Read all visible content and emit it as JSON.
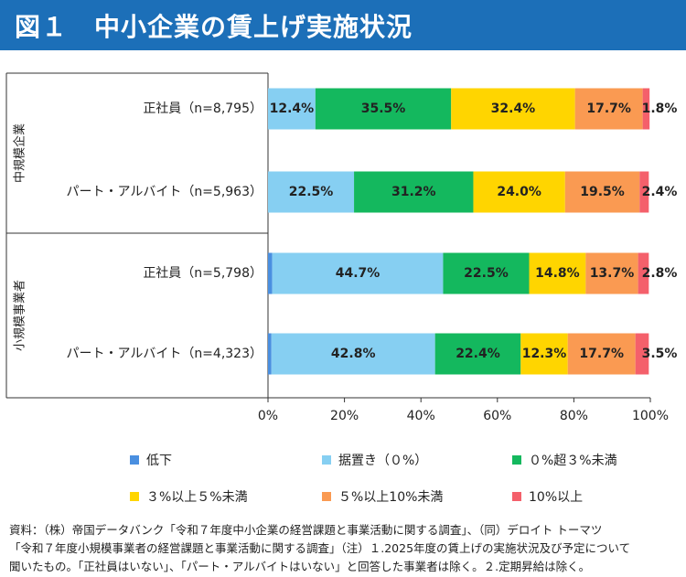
{
  "title": "図１　中小企業の賃上げ実施状況",
  "chart_data": {
    "type": "bar",
    "orientation": "horizontal",
    "stacked": true,
    "categories": [
      "正社員（n=8,795）",
      "パート・アルバイト（n=5,963）",
      "正社員（n=5,798）",
      "パート・アルバイト（n=4,323）"
    ],
    "groups": [
      {
        "name": "中規模企業",
        "categories": [
          0,
          1
        ]
      },
      {
        "name": "小規模事業者",
        "categories": [
          2,
          3
        ]
      }
    ],
    "series": [
      {
        "name": "低下",
        "color": "#4a8fe0",
        "values": [
          0.0,
          0.0,
          1.1,
          0.9
        ]
      },
      {
        "name": "据置き（０%）",
        "color": "#86cff2",
        "values": [
          12.4,
          22.5,
          44.7,
          42.8
        ],
        "labels": [
          "12.4%",
          "22.5%",
          "44.7%",
          "42.8%"
        ]
      },
      {
        "name": "０%超３%未満",
        "color": "#14b85e",
        "values": [
          35.5,
          31.2,
          22.5,
          22.4
        ],
        "labels": [
          "35.5%",
          "31.2%",
          "22.5%",
          "22.4%"
        ]
      },
      {
        "name": "３%以上５%未満",
        "color": "#ffd500",
        "values": [
          32.4,
          24.0,
          14.8,
          12.3
        ],
        "labels": [
          "32.4%",
          "24.0%",
          "14.8%",
          "12.3%"
        ]
      },
      {
        "name": "５%以上10%未満",
        "color": "#fa9a52",
        "values": [
          17.7,
          19.5,
          13.7,
          17.7
        ],
        "labels": [
          "17.7%",
          "19.5%",
          "13.7%",
          "17.7%"
        ]
      },
      {
        "name": "10%以上",
        "color": "#f4606b",
        "values": [
          1.8,
          2.4,
          2.8,
          3.5
        ],
        "labels": [
          "1.8%",
          "2.4%",
          "2.8%",
          "3.5%"
        ]
      }
    ],
    "xlim": [
      0,
      100
    ],
    "xticks": [
      "0%",
      "20%",
      "40%",
      "60%",
      "80%",
      "100%"
    ],
    "grid": false,
    "legend_position": "bottom"
  },
  "footnote": [
    "資料：（株）帝国データバンク「令和７年度中小企業の経営課題と事業活動に関する調査」、（同）デロイト トーマツ",
    "「令和７年度小規模事業者の経営課題と事業活動に関する調査」（注）１.2025年度の賃上げの実施状況及び予定について",
    "聞いたもの。「正社員はいない」、「パート・アルバイトはいない」と回答した事業者は除く。２.定期昇給は除く。"
  ]
}
